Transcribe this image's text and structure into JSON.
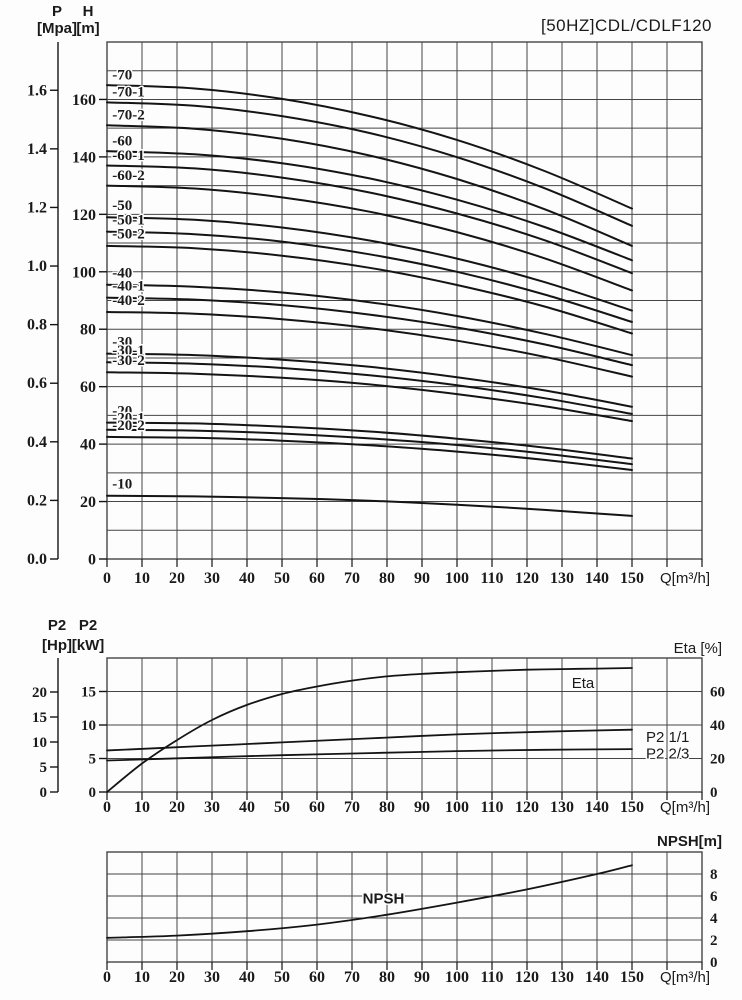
{
  "title": "[50HZ]CDL/CDLF120",
  "q_axis": {
    "unit": "Q[m³/h]",
    "ticks": [
      {
        "v": 0,
        "t": "0"
      },
      {
        "v": 10,
        "t": "10"
      },
      {
        "v": 20,
        "t": "20"
      },
      {
        "v": 30,
        "t": "30"
      },
      {
        "v": 40,
        "t": "40"
      },
      {
        "v": 50,
        "t": "50"
      },
      {
        "v": 60,
        "t": "60"
      },
      {
        "v": 70,
        "t": "70"
      },
      {
        "v": 80,
        "t": "80"
      },
      {
        "v": 90,
        "t": "90"
      },
      {
        "v": 100,
        "t": "100"
      },
      {
        "v": 110,
        "t": "110"
      },
      {
        "v": 120,
        "t": "120"
      },
      {
        "v": 130,
        "t": "130"
      },
      {
        "v": 140,
        "t": "140"
      },
      {
        "v": 150,
        "t": "150"
      }
    ]
  },
  "chart_data": [
    {
      "id": "hq",
      "type": "line",
      "title": "[50HZ]CDL/CDLF120",
      "xlabel": "Q[m³/h]",
      "xlim": [
        0,
        170
      ],
      "ylim_m": [
        0,
        180
      ],
      "axis_headers": [
        {
          "line1": "P",
          "line2": "[Mpa]"
        },
        {
          "line1": "H",
          "line2": "[m]"
        }
      ],
      "p_ticks": [
        {
          "v": 0.0,
          "t": "0.0"
        },
        {
          "v": 0.2,
          "t": "0.2"
        },
        {
          "v": 0.4,
          "t": "0.4"
        },
        {
          "v": 0.6,
          "t": "0.6"
        },
        {
          "v": 0.8,
          "t": "0.8"
        },
        {
          "v": 1.0,
          "t": "1.0"
        },
        {
          "v": 1.2,
          "t": "1.2"
        },
        {
          "v": 1.4,
          "t": "1.4"
        },
        {
          "v": 1.6,
          "t": "1.6"
        }
      ],
      "h_ticks": [
        {
          "v": 0,
          "t": "0"
        },
        {
          "v": 20,
          "t": "20"
        },
        {
          "v": 40,
          "t": "40"
        },
        {
          "v": 60,
          "t": "60"
        },
        {
          "v": 80,
          "t": "80"
        },
        {
          "v": 100,
          "t": "100"
        },
        {
          "v": 120,
          "t": "120"
        },
        {
          "v": 140,
          "t": "140"
        },
        {
          "v": 160,
          "t": "160"
        }
      ],
      "shared_x": [
        0,
        25,
        50,
        75,
        100,
        125,
        150
      ],
      "series": [
        {
          "name": "-70",
          "y": [
            165,
            163.8,
            160.2,
            154.2,
            145.9,
            135.1,
            122
          ]
        },
        {
          "name": "-70-1",
          "y": [
            159,
            157.8,
            154.2,
            148.3,
            139.9,
            129.1,
            116
          ]
        },
        {
          "name": "-70-2",
          "y": [
            151,
            149.8,
            146.3,
            140.5,
            132.3,
            121.8,
            109
          ]
        },
        {
          "name": "-60",
          "y": [
            142,
            140.9,
            137.8,
            132.5,
            125.1,
            115.6,
            104
          ]
        },
        {
          "name": "-60-1",
          "y": [
            137,
            136.0,
            132.8,
            127.6,
            120.3,
            111.0,
            99.5
          ]
        },
        {
          "name": "-60-2",
          "y": [
            130,
            129.0,
            125.9,
            120.9,
            113.8,
            104.7,
            93.5
          ]
        },
        {
          "name": "-50",
          "y": [
            119,
            118.1,
            115.4,
            110.9,
            104.6,
            96.4,
            86.5
          ]
        },
        {
          "name": "-50-1",
          "y": [
            114,
            113.1,
            110.5,
            106.1,
            100.0,
            92.1,
            82.5
          ]
        },
        {
          "name": "-50-2",
          "y": [
            109,
            108.2,
            105.6,
            101.4,
            95.4,
            87.9,
            78.5
          ]
        },
        {
          "name": "-40",
          "y": [
            95.5,
            94.8,
            92.8,
            89.4,
            84.6,
            78.4,
            71
          ]
        },
        {
          "name": "-40-1",
          "y": [
            91,
            90.3,
            88.4,
            85.1,
            80.6,
            74.7,
            67.5
          ]
        },
        {
          "name": "-40-2",
          "y": [
            86,
            85.4,
            83.5,
            80.4,
            76.0,
            70.4,
            63.5
          ]
        },
        {
          "name": "-30",
          "y": [
            71.5,
            71.0,
            69.4,
            66.9,
            63.3,
            58.7,
            53
          ]
        },
        {
          "name": "-30-1",
          "y": [
            68.5,
            68.0,
            66.5,
            64.0,
            60.5,
            56.0,
            50.5
          ]
        },
        {
          "name": "-30-2",
          "y": [
            65,
            64.5,
            63.1,
            60.8,
            57.4,
            53.2,
            48
          ]
        },
        {
          "name": "-20",
          "y": [
            47.5,
            47.2,
            46.1,
            44.4,
            41.9,
            38.8,
            35
          ]
        },
        {
          "name": "-20-1",
          "y": [
            45,
            44.7,
            43.7,
            42.0,
            39.7,
            36.7,
            33
          ]
        },
        {
          "name": "-20-2",
          "y": [
            42.5,
            42.2,
            41.2,
            39.6,
            37.4,
            34.5,
            31
          ]
        },
        {
          "name": "-10",
          "y": [
            22,
            21.8,
            21.2,
            20.3,
            18.9,
            17.1,
            15
          ]
        }
      ],
      "curve_labels": [
        {
          "t": "-70",
          "v": 167
        },
        {
          "t": "-70-1",
          "v": 161
        },
        {
          "t": "-70-2",
          "v": 153
        },
        {
          "t": "-60",
          "v": 144
        },
        {
          "t": "-60-1",
          "v": 139
        },
        {
          "t": "-60-2",
          "v": 132
        },
        {
          "t": "-50",
          "v": 121.5
        },
        {
          "t": "-50-1",
          "v": 116.5
        },
        {
          "t": "-50-2",
          "v": 111.5
        },
        {
          "t": "-40",
          "v": 98
        },
        {
          "t": "-40-1",
          "v": 93.5
        },
        {
          "t": "-40-2",
          "v": 88.5
        },
        {
          "t": "-30",
          "v": 74
        },
        {
          "t": "-30-1",
          "v": 71
        },
        {
          "t": "-30-2",
          "v": 67.5
        },
        {
          "t": "-20",
          "v": 50
        },
        {
          "t": "-20-1",
          "v": 47.5
        },
        {
          "t": "-20-2",
          "v": 45
        },
        {
          "t": "-10",
          "v": 24.5
        }
      ]
    },
    {
      "id": "p2eta",
      "type": "line",
      "xlabel": "Q[m³/h]",
      "xlim": [
        0,
        170
      ],
      "ylim_kw": [
        0,
        20
      ],
      "ylim_eta": [
        0,
        80
      ],
      "axis_headers": [
        {
          "line1": "P2",
          "line2": "[Hp]"
        },
        {
          "line1": "P2",
          "line2": "[kW]"
        }
      ],
      "right_header": "Eta [%]",
      "hp_ticks": [
        {
          "v": 0,
          "t": "0"
        },
        {
          "v": 5,
          "t": "5"
        },
        {
          "v": 10,
          "t": "10"
        },
        {
          "v": 15,
          "t": "15"
        },
        {
          "v": 20,
          "t": "20"
        }
      ],
      "kw_ticks": [
        {
          "v": 0,
          "t": "0"
        },
        {
          "v": 5,
          "t": "5"
        },
        {
          "v": 10,
          "t": "10"
        },
        {
          "v": 15,
          "t": "15"
        }
      ],
      "eta_ticks": [
        {
          "v": 0,
          "t": "0"
        },
        {
          "v": 20,
          "t": "20"
        },
        {
          "v": 40,
          "t": "40"
        },
        {
          "v": 60,
          "t": "60"
        }
      ],
      "series": [
        {
          "name": "Eta",
          "axis": "eta",
          "x": [
            0,
            10,
            20,
            30,
            40,
            50,
            60,
            70,
            80,
            90,
            100,
            110,
            120,
            130,
            140,
            150
          ],
          "y": [
            0,
            17,
            31,
            43,
            52,
            58.5,
            63,
            66.5,
            69,
            70.5,
            71.5,
            72.3,
            73,
            73.4,
            73.7,
            74
          ]
        },
        {
          "name": "P2 1/1",
          "axis": "kw",
          "x": [
            0,
            25,
            50,
            75,
            100,
            125,
            150
          ],
          "y": [
            6.2,
            6.8,
            7.4,
            8.0,
            8.6,
            9.0,
            9.3
          ]
        },
        {
          "name": "P2 2/3",
          "axis": "kw",
          "x": [
            0,
            25,
            50,
            75,
            100,
            125,
            150
          ],
          "y": [
            4.7,
            5.1,
            5.5,
            5.8,
            6.1,
            6.3,
            6.4
          ]
        }
      ],
      "curve_labels": [
        {
          "t": "Eta",
          "axis": "eta",
          "q": 136,
          "v": 62,
          "anchor": "middle"
        },
        {
          "t": "P2 1/1",
          "axis": "kw",
          "q": 154,
          "v": 7.45,
          "anchor": "start"
        },
        {
          "t": "P2 2/3",
          "axis": "kw",
          "q": 154,
          "v": 5.0,
          "anchor": "start"
        }
      ]
    },
    {
      "id": "npsh",
      "type": "line",
      "xlabel": "Q[m³/h]",
      "xlim": [
        0,
        170
      ],
      "ylim_m": [
        0,
        10
      ],
      "right_header": "NPSH[m]",
      "npsh_ticks": [
        {
          "v": 0,
          "t": "0"
        },
        {
          "v": 2,
          "t": "2"
        },
        {
          "v": 4,
          "t": "4"
        },
        {
          "v": 6,
          "t": "6"
        },
        {
          "v": 8,
          "t": "8"
        }
      ],
      "series": [
        {
          "name": "NPSH",
          "x": [
            0,
            20,
            40,
            60,
            80,
            100,
            120,
            140,
            150
          ],
          "y": [
            2.2,
            2.4,
            2.8,
            3.4,
            4.3,
            5.4,
            6.6,
            8.0,
            8.8
          ]
        }
      ],
      "curve_labels": [
        {
          "t": "NPSH",
          "q": 79,
          "v": 5.3,
          "anchor": "middle"
        }
      ]
    }
  ]
}
